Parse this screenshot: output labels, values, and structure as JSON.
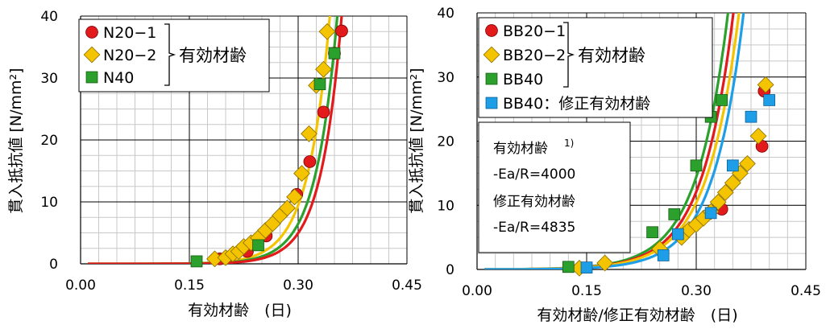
{
  "chart_data": [
    {
      "type": "scatter",
      "xlabel": "有効材齢　(日)",
      "ylabel": "貫入抵抗値 [N/mm²]",
      "xlim": [
        0,
        0.45
      ],
      "ylim": [
        0,
        40
      ],
      "x_ticks": [
        "0.00",
        "0.15",
        "0.30",
        "0.45"
      ],
      "y_ticks": [
        "0",
        "10",
        "20",
        "30",
        "40"
      ],
      "legend_position": "top-left",
      "bracket_label": "有効材齢",
      "series": [
        {
          "name": "N20−1",
          "marker": "circle",
          "color": "#e31a1c",
          "x": [
            0.192,
            0.23,
            0.256,
            0.298,
            0.316,
            0.335,
            0.35,
            0.36
          ],
          "y": [
            0.8,
            2.0,
            4.5,
            11.2,
            16.5,
            24.5,
            34.0,
            37.6
          ]
        },
        {
          "name": "N20−2",
          "marker": "diamond",
          "color": "#f5c400",
          "x": [
            0.185,
            0.2,
            0.21,
            0.218,
            0.225,
            0.235,
            0.245,
            0.255,
            0.265,
            0.275,
            0.285,
            0.295,
            0.305,
            0.315,
            0.325,
            0.335,
            0.34
          ],
          "y": [
            0.8,
            1.0,
            1.6,
            2.0,
            2.8,
            3.4,
            4.2,
            5.4,
            6.5,
            7.8,
            9.0,
            10.8,
            14.6,
            21.0,
            28.8,
            31.4,
            37.5
          ]
        },
        {
          "name": "N40",
          "marker": "square",
          "color": "#2ca02c",
          "x": [
            0.16,
            0.245,
            0.33,
            0.35
          ],
          "y": [
            0.4,
            3.0,
            29.0,
            34.0
          ]
        }
      ],
      "fits": [
        {
          "color": "#f5c400",
          "a": 0.000475,
          "b": 33.0
        },
        {
          "color": "#2ca02c",
          "a": 0.000255,
          "b": 33.8
        },
        {
          "color": "#e31a1c",
          "a": 0.000145,
          "b": 34.8
        }
      ]
    },
    {
      "type": "scatter",
      "xlabel": "有効材齢/修正有効材齢　(日)",
      "ylabel": "貫入抵抗値 [N/mm²]",
      "xlim": [
        0,
        0.45
      ],
      "ylim": [
        0,
        40
      ],
      "x_ticks": [
        "0.00",
        "0.15",
        "0.30",
        "0.45"
      ],
      "y_ticks": [
        "0",
        "10",
        "20",
        "30",
        "40"
      ],
      "legend_position": "top-left",
      "bracket_label": "有効材齢",
      "note": {
        "line1": "有効材齢",
        "sup": "1)",
        "line2": "-Ea/R=4000",
        "line3": "修正有効材齢",
        "line4": "-Ea/R=4835"
      },
      "series": [
        {
          "name": "BB20−1",
          "marker": "circle",
          "color": "#e31a1c",
          "x": [
            0.335,
            0.39,
            0.393
          ],
          "y": [
            9.4,
            19.2,
            27.8
          ]
        },
        {
          "name": "BB20−2",
          "marker": "diamond",
          "color": "#f5c400",
          "x": [
            0.14,
            0.175,
            0.25,
            0.28,
            0.29,
            0.3,
            0.31,
            0.32,
            0.33,
            0.34,
            0.35,
            0.36,
            0.37,
            0.385,
            0.395
          ],
          "y": [
            0.2,
            1.0,
            3.2,
            5.0,
            6.2,
            7.0,
            8.0,
            9.0,
            10.5,
            12.0,
            13.5,
            15.0,
            16.5,
            20.8,
            28.8
          ]
        },
        {
          "name": "BB40",
          "marker": "square",
          "color": "#2ca02c",
          "x": [
            0.125,
            0.24,
            0.27,
            0.3,
            0.32,
            0.335
          ],
          "y": [
            0.4,
            5.8,
            8.6,
            16.2,
            23.8,
            26.4
          ]
        },
        {
          "name": "BB40：修正有効材齢",
          "marker": "square",
          "color": "#1f9ee8",
          "x": [
            0.15,
            0.255,
            0.275,
            0.32,
            0.35,
            0.375,
            0.4
          ],
          "y": [
            0.3,
            2.2,
            5.5,
            8.8,
            16.2,
            23.8,
            26.4
          ]
        }
      ],
      "fits": [
        {
          "color": "#2ca02c",
          "a": 0.0125,
          "b": 23.5
        },
        {
          "color": "#e31a1c",
          "a": 0.0105,
          "b": 23.5
        },
        {
          "color": "#f5c400",
          "a": 0.0105,
          "b": 23.0
        },
        {
          "color": "#1f9ee8",
          "a": 0.0063,
          "b": 24.0
        }
      ]
    }
  ]
}
